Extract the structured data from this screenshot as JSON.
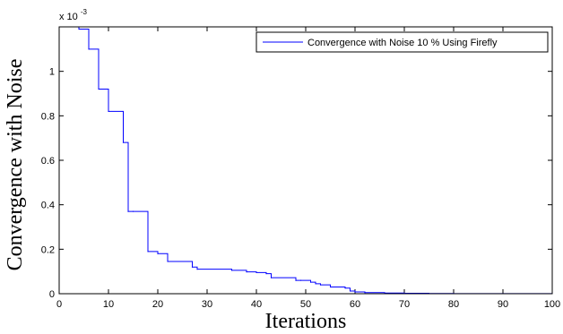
{
  "chart_data": {
    "type": "line",
    "xlabel": "Iterations",
    "ylabel": "Convergence with Noise",
    "xlim": [
      0,
      100
    ],
    "ylim": [
      0,
      0.0012
    ],
    "xticks": [
      0,
      10,
      20,
      30,
      40,
      50,
      60,
      70,
      80,
      90,
      100
    ],
    "yticks": [
      0,
      0.0002,
      0.0004,
      0.0006,
      0.0008,
      0.001
    ],
    "ytick_labels": [
      "0",
      "0.2",
      "0.4",
      "0.6",
      "0.8",
      "1"
    ],
    "y_multiplier_base": "x 10",
    "y_multiplier_exponent": "-3",
    "grid": false,
    "legend_position": "top-right",
    "series": [
      {
        "name": "Convergence with Noise 10 % Using Firefly",
        "color": "#0000ff",
        "step": true,
        "x": [
          4,
          6,
          8,
          10,
          13,
          14,
          15,
          18,
          20,
          22,
          27,
          28,
          35,
          38,
          40,
          42,
          43,
          48,
          49,
          51,
          52,
          53,
          55,
          58,
          59,
          60,
          62,
          66,
          70,
          75,
          80,
          100
        ],
        "y": [
          0.00119,
          0.0011,
          0.00092,
          0.00082,
          0.00068,
          0.00037,
          0.00037,
          0.00019,
          0.00018,
          0.000145,
          0.00012,
          0.00011,
          0.000105,
          9.8e-05,
          9.5e-05,
          9e-05,
          7.2e-05,
          6e-05,
          6e-05,
          5.2e-05,
          4.5e-05,
          4e-05,
          3e-05,
          2.5e-05,
          1.2e-05,
          8e-06,
          5e-06,
          3e-06,
          2e-06,
          1e-06,
          5e-07,
          5e-07
        ]
      }
    ]
  }
}
